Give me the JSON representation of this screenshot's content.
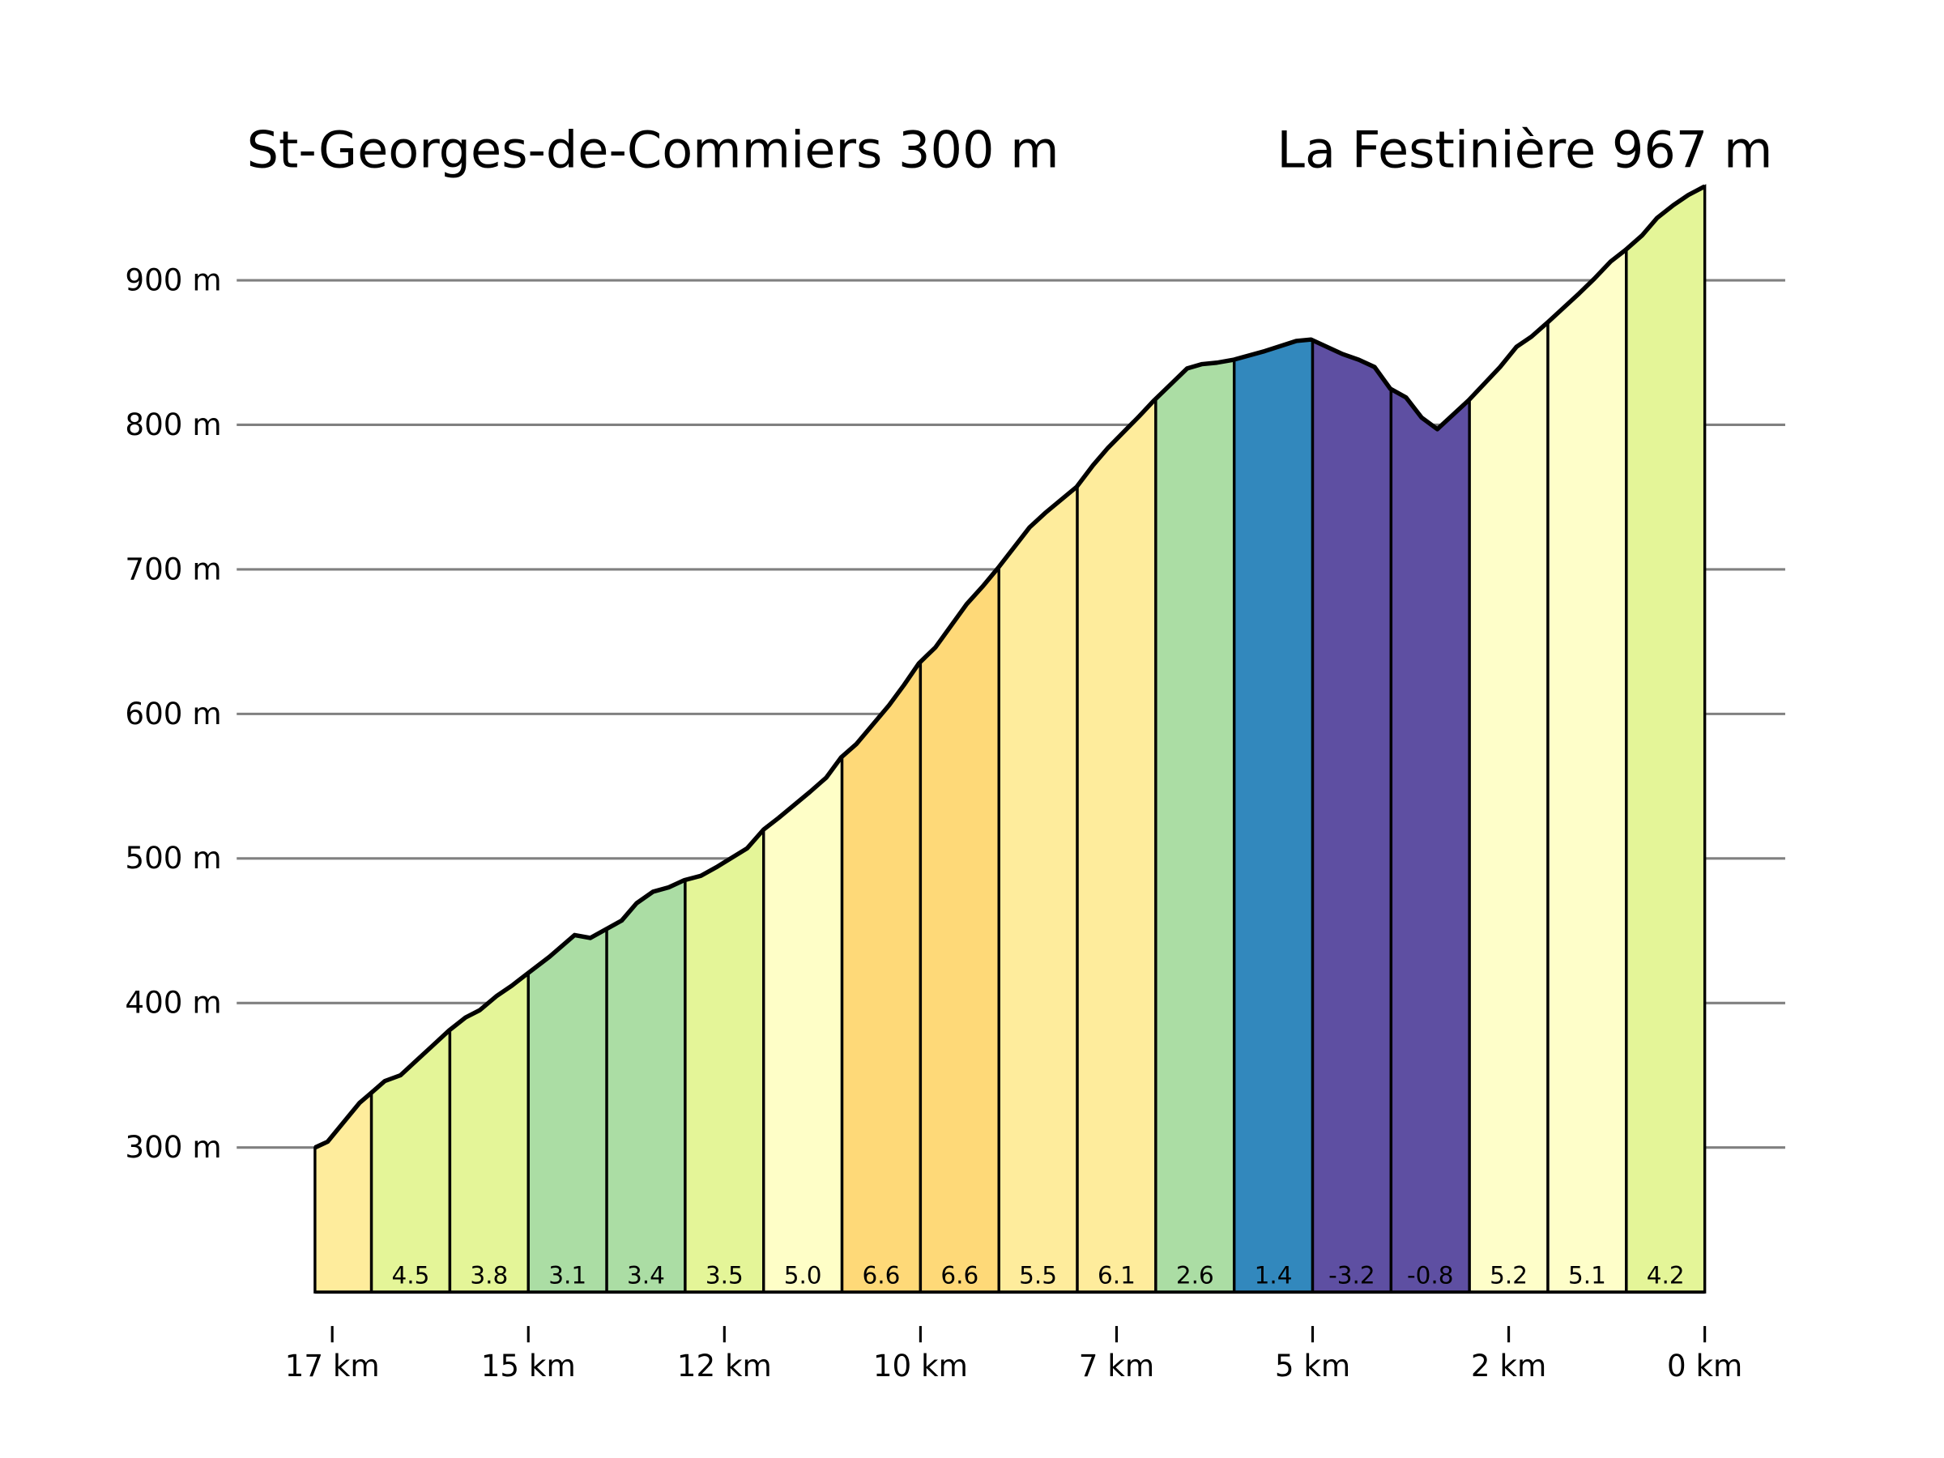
{
  "chart_data": {
    "type": "area",
    "title_left": "St-Georges-de-Commiers 300 m",
    "title_right": "La Festinière 967 m",
    "xlabel": "",
    "ylabel": "",
    "ylim": [
      200,
      967
    ],
    "xlim_km_from_end": [
      17.72,
      0
    ],
    "grid": true,
    "y_ticks": [
      {
        "value": 300,
        "label": "300 m"
      },
      {
        "value": 400,
        "label": "400 m"
      },
      {
        "value": 500,
        "label": "500 m"
      },
      {
        "value": 600,
        "label": "600 m"
      },
      {
        "value": 700,
        "label": "700 m"
      },
      {
        "value": 800,
        "label": "800 m"
      },
      {
        "value": 900,
        "label": "900 m"
      }
    ],
    "x_ticks": [
      {
        "value": 17.5,
        "label": "17 km"
      },
      {
        "value": 15,
        "label": "15 km"
      },
      {
        "value": 12.5,
        "label": "12 km"
      },
      {
        "value": 10,
        "label": "10 km"
      },
      {
        "value": 7.5,
        "label": "7 km"
      },
      {
        "value": 5,
        "label": "5 km"
      },
      {
        "value": 2.5,
        "label": "2 km"
      },
      {
        "value": 0,
        "label": "0 km"
      }
    ],
    "profile": {
      "km": [
        17.72,
        17.56,
        17.15,
        17.02,
        16.83,
        16.63,
        16.23,
        16.01,
        15.8,
        15.62,
        15.4,
        15.21,
        15.02,
        14.73,
        14.41,
        14.21,
        14.01,
        13.81,
        13.62,
        13.41,
        13.21,
        13.01,
        12.8,
        12.6,
        12.21,
        12.0,
        11.81,
        11.41,
        11.2,
        11.01,
        10.82,
        10.4,
        10.21,
        10.02,
        9.81,
        9.41,
        9.21,
        9.01,
        8.61,
        8.41,
        8.01,
        7.8,
        7.61,
        7.21,
        7.02,
        6.81,
        6.6,
        6.41,
        6.22,
        6.01,
        5.61,
        5.21,
        5.02,
        4.62,
        4.41,
        4.21,
        4.01,
        3.81,
        3.61,
        3.41,
        3.21,
        3.01,
        2.61,
        2.4,
        2.21,
        2.0,
        1.6,
        1.41,
        1.2,
        1.01,
        0.8,
        0.61,
        0.4,
        0.21,
        0
      ],
      "elevation": [
        300,
        304,
        331,
        337,
        346,
        350,
        370,
        381,
        390,
        395,
        405,
        412,
        420,
        432,
        447,
        445,
        451,
        457,
        469,
        477,
        480,
        485,
        488,
        494,
        507,
        520,
        528,
        546,
        556,
        570,
        579,
        606,
        620,
        635,
        646,
        676,
        688,
        701,
        729,
        739,
        757,
        772,
        784,
        806,
        817,
        828,
        839,
        842,
        843,
        845,
        851,
        858,
        859,
        849,
        845,
        840,
        825,
        819,
        805,
        797,
        807,
        817,
        840,
        854,
        861,
        871,
        891,
        901,
        913,
        921,
        931,
        943,
        952,
        959,
        965
      ]
    },
    "segments": [
      {
        "from_km": 17.72,
        "to_km": 17,
        "gradient": "",
        "color": "#feec9c"
      },
      {
        "from_km": 17,
        "to_km": 16,
        "gradient": "4.5",
        "color": "#e4f598"
      },
      {
        "from_km": 16,
        "to_km": 15,
        "gradient": "3.8",
        "color": "#e4f598"
      },
      {
        "from_km": 15,
        "to_km": 14,
        "gradient": "3.1",
        "color": "#abdda4"
      },
      {
        "from_km": 14,
        "to_km": 13,
        "gradient": "3.4",
        "color": "#abdda4"
      },
      {
        "from_km": 13,
        "to_km": 12,
        "gradient": "3.5",
        "color": "#e4f598"
      },
      {
        "from_km": 12,
        "to_km": 11,
        "gradient": "5.0",
        "color": "#fefec7"
      },
      {
        "from_km": 11,
        "to_km": 10,
        "gradient": "6.6",
        "color": "#fed978"
      },
      {
        "from_km": 10,
        "to_km": 9,
        "gradient": "6.6",
        "color": "#fed978"
      },
      {
        "from_km": 9,
        "to_km": 8,
        "gradient": "5.5",
        "color": "#feec9c"
      },
      {
        "from_km": 8,
        "to_km": 7,
        "gradient": "6.1",
        "color": "#feec9c"
      },
      {
        "from_km": 7,
        "to_km": 6,
        "gradient": "2.6",
        "color": "#abdda4"
      },
      {
        "from_km": 6,
        "to_km": 5,
        "gradient": "1.4",
        "color": "#3288bd"
      },
      {
        "from_km": 5,
        "to_km": 4,
        "gradient": "-3.2",
        "color": "#5e4fa2"
      },
      {
        "from_km": 4,
        "to_km": 3,
        "gradient": "-0.8",
        "color": "#5e4fa2"
      },
      {
        "from_km": 3,
        "to_km": 2,
        "gradient": "5.2",
        "color": "#fefec9"
      },
      {
        "from_km": 2,
        "to_km": 1,
        "gradient": "5.1",
        "color": "#fefec9"
      },
      {
        "from_km": 1,
        "to_km": 0,
        "gradient": "4.2",
        "color": "#e4f598"
      }
    ]
  }
}
